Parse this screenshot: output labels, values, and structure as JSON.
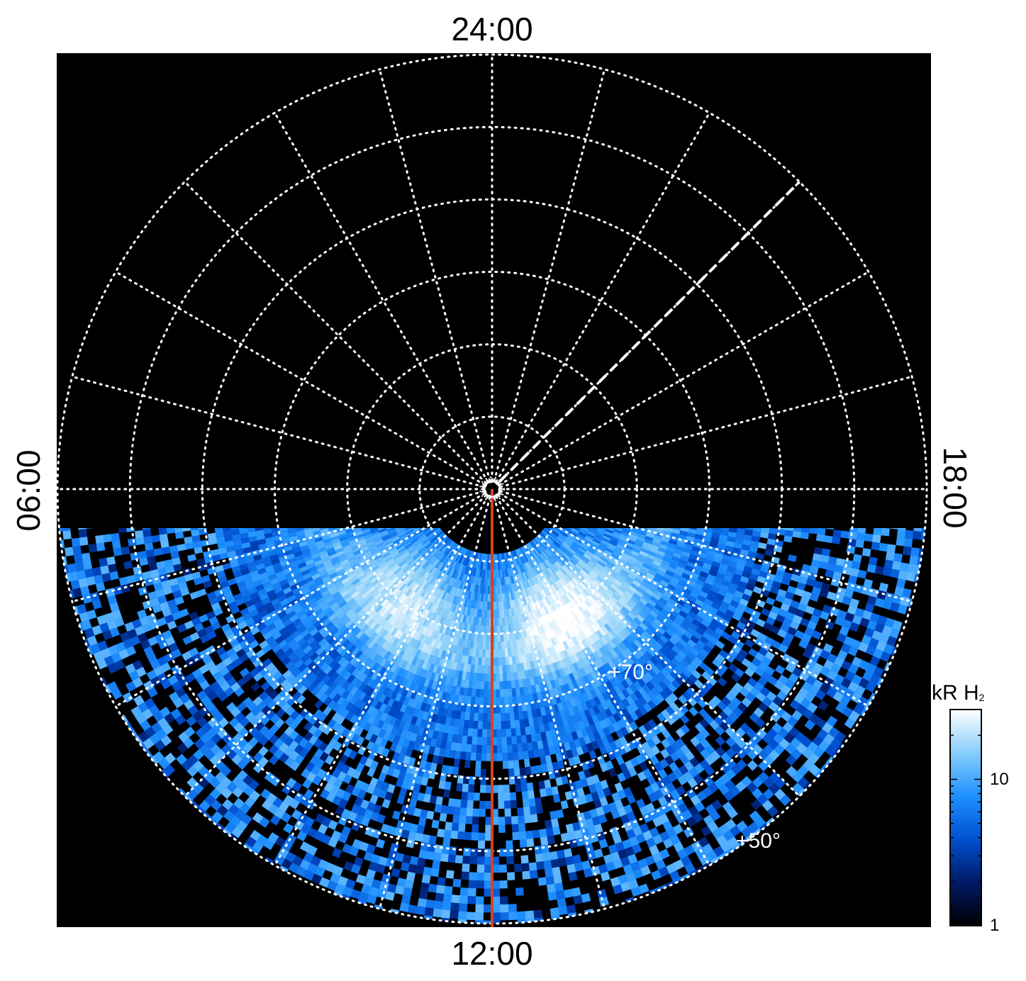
{
  "chart_data": {
    "type": "heatmap",
    "projection": "polar",
    "title": "",
    "local_time_labels": {
      "top": "24:00",
      "bottom": "12:00",
      "left": "06:00",
      "right": "18:00"
    },
    "latitude_labels": [
      "+70°",
      "+50°"
    ],
    "latitude_circles_deg": [
      30,
      40,
      50,
      60,
      70,
      80,
      89
    ],
    "meridian_step_hours": 1,
    "colorbar": {
      "label": "kR H",
      "label_subscript": "2",
      "scale": "log",
      "range": [
        1,
        30
      ],
      "ticks": [
        {
          "value": 1,
          "label": "1"
        },
        {
          "value": 10,
          "label": "10"
        }
      ],
      "colors": [
        "#000000",
        "#001a66",
        "#0050d0",
        "#1e90ff",
        "#87cefa",
        "#ffffff"
      ]
    },
    "data_coverage": "lower part of the disk (dayside, below the 06:00–18:00 line)",
    "bright_regions": [
      {
        "mlt": "09:30",
        "colat_deg": 20,
        "approx_kR": 20
      },
      {
        "mlt": "14:00",
        "colat_deg": 20,
        "approx_kR": 30
      }
    ],
    "highlighted_meridian": {
      "mlt": "12:00",
      "color": "#d9421b",
      "style": "solid"
    },
    "dashed_meridian": {
      "mlt": "21:00",
      "color": "#ffffff",
      "style": "dashed"
    },
    "grid": true
  }
}
